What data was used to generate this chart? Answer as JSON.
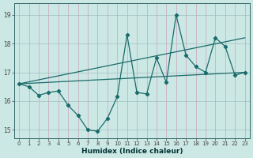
{
  "xlabel": "Humidex (Indice chaleur)",
  "background_color": "#cce8e4",
  "line_color": "#1a6b6b",
  "xlim": [
    -0.5,
    23.5
  ],
  "ylim": [
    14.7,
    19.4
  ],
  "xticks": [
    0,
    1,
    2,
    3,
    4,
    5,
    6,
    7,
    8,
    9,
    10,
    11,
    12,
    13,
    14,
    15,
    16,
    17,
    18,
    19,
    20,
    21,
    22,
    23
  ],
  "yticks": [
    15,
    16,
    17,
    18,
    19
  ],
  "main_x": [
    0,
    1,
    2,
    3,
    4,
    5,
    6,
    7,
    8,
    9,
    10,
    11,
    12,
    13,
    14,
    15,
    16,
    17,
    18,
    19,
    20,
    21,
    22,
    23
  ],
  "main_y": [
    16.6,
    16.5,
    16.2,
    16.3,
    16.35,
    15.85,
    15.5,
    15.0,
    14.95,
    15.4,
    16.15,
    18.3,
    16.3,
    16.25,
    17.5,
    16.65,
    19.0,
    17.6,
    17.2,
    17.0,
    18.2,
    17.9,
    16.9,
    17.0
  ],
  "upper_line_x": [
    0,
    23
  ],
  "upper_line_y": [
    16.6,
    18.2
  ],
  "lower_line_x": [
    0,
    23
  ],
  "lower_line_y": [
    16.6,
    17.0
  ],
  "grid_color_vert": "#cc99cc",
  "grid_color_horiz": "#99bbbb"
}
